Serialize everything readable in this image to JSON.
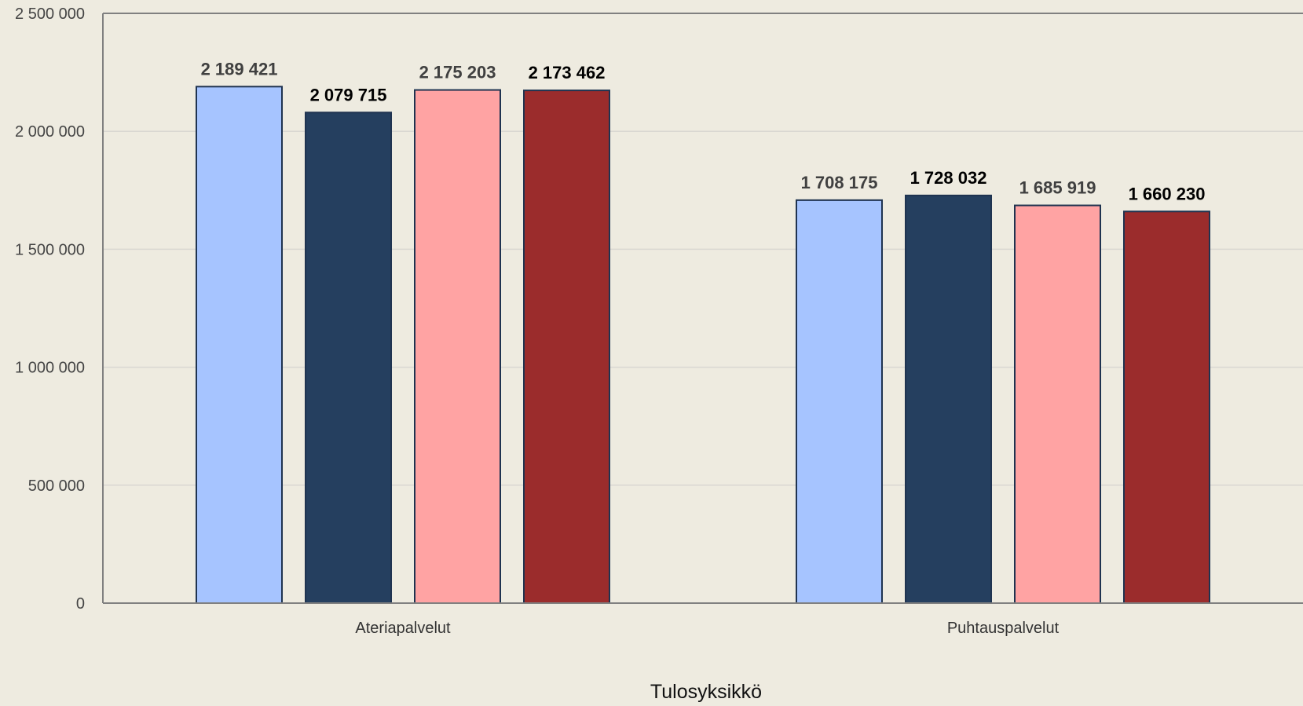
{
  "chart_data": {
    "type": "bar",
    "title": "",
    "xlabel": "Tulosyksikkö",
    "ylabel": "",
    "ylim": [
      0,
      2500000
    ],
    "yticks": [
      {
        "value": 0,
        "label": "0"
      },
      {
        "value": 500000,
        "label": "500 000"
      },
      {
        "value": 1000000,
        "label": "1 000 000"
      },
      {
        "value": 1500000,
        "label": "1 500 000"
      },
      {
        "value": 2000000,
        "label": "2 000 000"
      },
      {
        "value": 2500000,
        "label": "2 500 000"
      }
    ],
    "grid": true,
    "legend": "none",
    "categories": [
      "Ateriapalvelut",
      "Puhtauspalvelut"
    ],
    "series": [
      {
        "color": "#a6c4ff",
        "label_color": "#404040",
        "values": [
          2189421,
          1708175
        ],
        "labels": [
          "2 189 421",
          "1 708 175"
        ]
      },
      {
        "color": "#253f5f",
        "label_color": "#000000",
        "values": [
          2079715,
          1728032
        ],
        "labels": [
          "2 079 715",
          "1 728 032"
        ]
      },
      {
        "color": "#ffa3a3",
        "label_color": "#404040",
        "values": [
          2175203,
          1685919
        ],
        "labels": [
          "2 175 203",
          "1 685 919"
        ]
      },
      {
        "color": "#9b2c2c",
        "label_color": "#000000",
        "values": [
          2173462,
          1660230
        ],
        "labels": [
          "2 173 462",
          "1 660 230"
        ]
      }
    ]
  }
}
